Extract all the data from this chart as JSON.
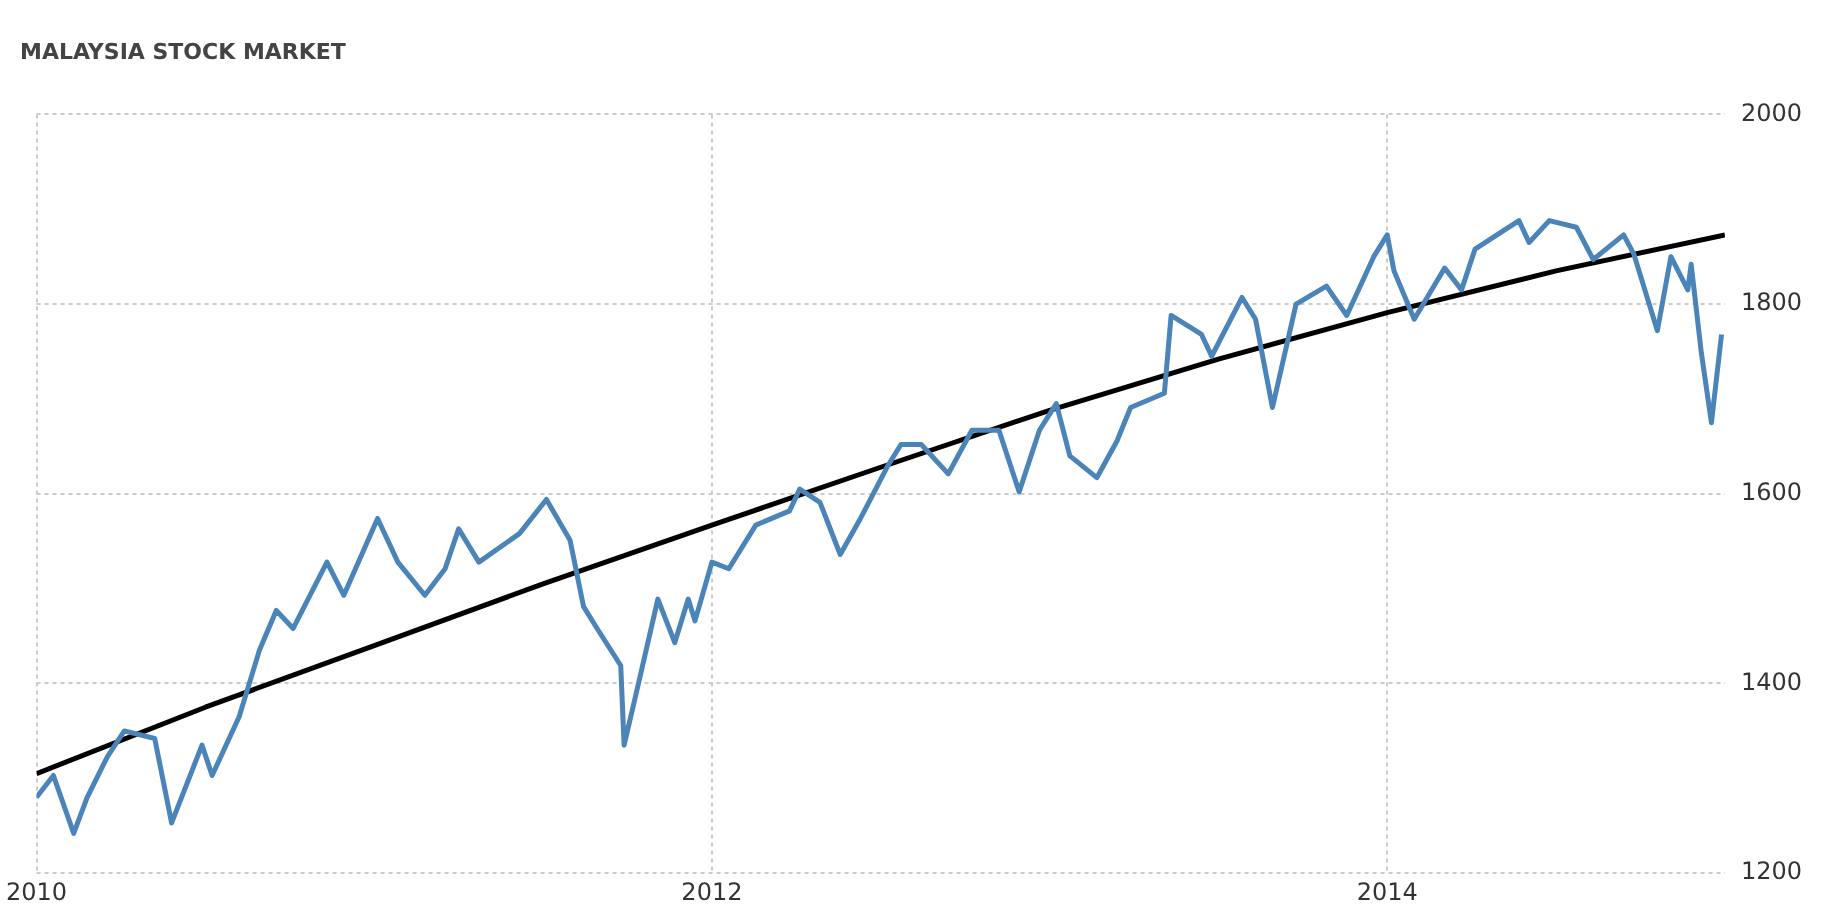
{
  "chart_data": {
    "type": "line",
    "title": "MALAYSIA STOCK MARKET",
    "xlim": [
      2010,
      2015
    ],
    "xticks": [
      2010,
      2012,
      2014
    ],
    "ylim": [
      1200,
      2000
    ],
    "yticks": [
      1200,
      1400,
      1600,
      1800,
      2000
    ],
    "grid": true,
    "legend": false,
    "series": [
      {
        "color": "#4a84b8",
        "x": [
          2010.0,
          2010.05,
          2010.11,
          2010.15,
          2010.21,
          2010.26,
          2010.35,
          2010.4,
          2010.49,
          2010.52,
          2010.6,
          2010.66,
          2010.71,
          2010.76,
          2010.86,
          2010.91,
          2011.01,
          2011.07,
          2011.15,
          2011.21,
          2011.25,
          2011.31,
          2011.43,
          2011.51,
          2011.58,
          2011.62,
          2011.66,
          2011.73,
          2011.74,
          2011.78,
          2011.84,
          2011.89,
          2011.93,
          2011.95,
          2012.0,
          2012.05,
          2012.13,
          2012.23,
          2012.26,
          2012.32,
          2012.38,
          2012.44,
          2012.52,
          2012.56,
          2012.62,
          2012.7,
          2012.77,
          2012.85,
          2012.91,
          2012.97,
          2013.02,
          2013.06,
          2013.14,
          2013.2,
          2013.24,
          2013.34,
          2013.36,
          2013.45,
          2013.48,
          2013.57,
          2013.61,
          2013.66,
          2013.73,
          2013.82,
          2013.88,
          2013.96,
          2014.0,
          2014.02,
          2014.08,
          2014.17,
          2014.22,
          2014.26,
          2014.39,
          2014.42,
          2014.48,
          2014.56,
          2014.61,
          2014.7,
          2014.73,
          2014.8,
          2014.84,
          2014.89,
          2014.9,
          2014.93,
          2014.96,
          2014.99
        ],
        "values": [
          1280,
          1303,
          1242,
          1280,
          1323,
          1350,
          1342,
          1253,
          1335,
          1303,
          1365,
          1435,
          1477,
          1458,
          1528,
          1493,
          1574,
          1528,
          1493,
          1521,
          1563,
          1528,
          1558,
          1594,
          1551,
          1481,
          1458,
          1419,
          1335,
          1396,
          1489,
          1443,
          1489,
          1466,
          1528,
          1521,
          1567,
          1582,
          1605,
          1591,
          1536,
          1574,
          1629,
          1652,
          1652,
          1621,
          1667,
          1667,
          1602,
          1667,
          1695,
          1640,
          1617,
          1656,
          1691,
          1706,
          1788,
          1768,
          1745,
          1807,
          1784,
          1691,
          1800,
          1819,
          1788,
          1850,
          1873,
          1835,
          1784,
          1838,
          1815,
          1858,
          1888,
          1865,
          1888,
          1881,
          1847,
          1873,
          1853,
          1772,
          1850,
          1815,
          1842,
          1749,
          1675,
          1768
        ]
      },
      {
        "type": "line",
        "color": "#000000",
        "x": [
          2010,
          2010.5,
          2011,
          2011.5,
          2012,
          2012.5,
          2013,
          2013.5,
          2014,
          2014.5,
          2015
        ],
        "values": [
          1305,
          1375,
          1440,
          1505,
          1567,
          1628,
          1688,
          1742,
          1791,
          1835,
          1873
        ]
      }
    ]
  }
}
